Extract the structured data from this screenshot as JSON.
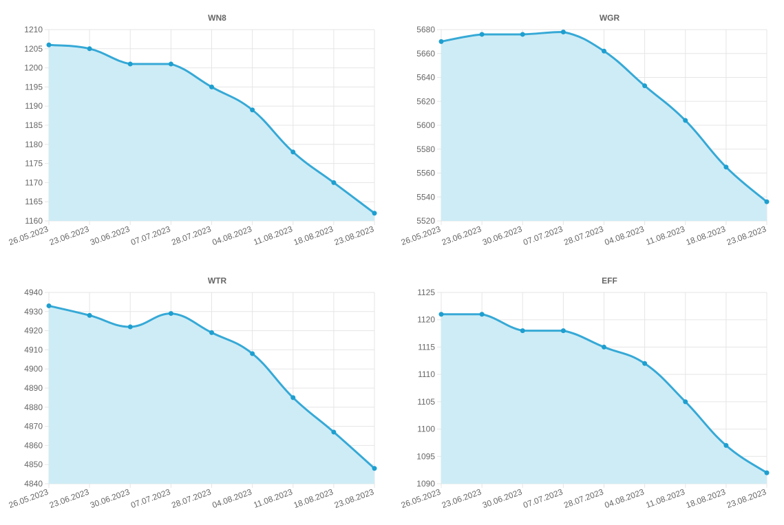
{
  "colors": {
    "line": "#36a9d6",
    "fill": "#ceecf6",
    "point": "#1e9fcf"
  },
  "chart_data": [
    {
      "type": "area",
      "title": "WN8",
      "categories": [
        "26.05.2023",
        "23.06.2023",
        "30.06.2023",
        "07.07.2023",
        "28.07.2023",
        "04.08.2023",
        "11.08.2023",
        "18.08.2023",
        "23.08.2023"
      ],
      "values": [
        1206,
        1205,
        1201,
        1201,
        1195,
        1189,
        1178,
        1170,
        1162
      ],
      "ylim": [
        1160,
        1210
      ],
      "yticks": [
        1160,
        1165,
        1170,
        1175,
        1180,
        1185,
        1190,
        1195,
        1200,
        1205,
        1210
      ],
      "grid": true
    },
    {
      "type": "area",
      "title": "WGR",
      "categories": [
        "26.05.2023",
        "23.06.2023",
        "30.06.2023",
        "07.07.2023",
        "28.07.2023",
        "04.08.2023",
        "11.08.2023",
        "18.08.2023",
        "23.08.2023"
      ],
      "values": [
        5670,
        5676,
        5676,
        5678,
        5662,
        5633,
        5604,
        5565,
        5536
      ],
      "ylim": [
        5520,
        5680
      ],
      "yticks": [
        5520,
        5540,
        5560,
        5580,
        5600,
        5620,
        5640,
        5660,
        5680
      ],
      "grid": true
    },
    {
      "type": "area",
      "title": "WTR",
      "categories": [
        "26.05.2023",
        "23.06.2023",
        "30.06.2023",
        "07.07.2023",
        "28.07.2023",
        "04.08.2023",
        "11.08.2023",
        "18.08.2023",
        "23.08.2023"
      ],
      "values": [
        4933,
        4928,
        4922,
        4929,
        4919,
        4908,
        4885,
        4867,
        4848
      ],
      "ylim": [
        4840,
        4940
      ],
      "yticks": [
        4840,
        4850,
        4860,
        4870,
        4880,
        4890,
        4900,
        4910,
        4920,
        4930,
        4940
      ],
      "grid": true
    },
    {
      "type": "area",
      "title": "EFF",
      "categories": [
        "26.05.2023",
        "23.06.2023",
        "30.06.2023",
        "07.07.2023",
        "28.07.2023",
        "04.08.2023",
        "11.08.2023",
        "18.08.2023",
        "23.08.2023"
      ],
      "values": [
        1121,
        1121,
        1118,
        1118,
        1115,
        1112,
        1105,
        1097,
        1092
      ],
      "ylim": [
        1090,
        1125
      ],
      "yticks": [
        1090,
        1095,
        1100,
        1105,
        1110,
        1115,
        1120,
        1125
      ],
      "grid": true
    }
  ]
}
